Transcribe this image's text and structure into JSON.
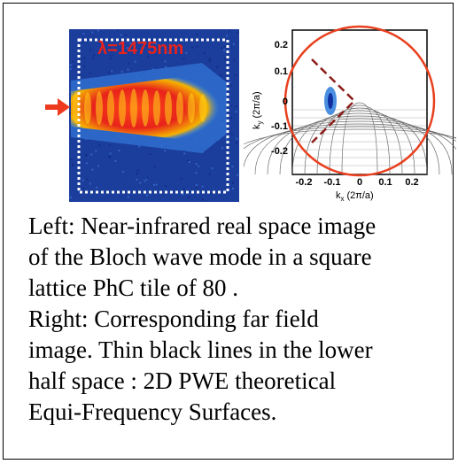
{
  "figure": {
    "left_panel": {
      "wavelength_label": "λ=1475nm",
      "colors": {
        "background": "#1b3d9c",
        "mode_hot": "#e8231b",
        "arrow": "#ee3a1f",
        "box": "#ffffff",
        "label": "#e8231b"
      },
      "icons": [
        "input-arrow-icon"
      ]
    },
    "right_panel": {
      "x_ticks": [
        "-0.2",
        "-0.1",
        "0",
        "0.1",
        "0.2"
      ],
      "y_ticks": [
        "0.2",
        "0.1",
        "0",
        "-0.1",
        "-0.2"
      ],
      "x_axis_label": {
        "main": "k",
        "sub": "x",
        "unit": "(2π/a)"
      },
      "y_axis_label": {
        "main": "k",
        "sub": "y",
        "unit": "(2π/a)"
      },
      "colors": {
        "circle": "#e8401e",
        "cone": "#8c1d18",
        "efs_lines": "#6b6b6b"
      }
    }
  },
  "caption": {
    "lines": [
      "Left: Near-infrared real space image",
      "of the Bloch wave mode in a square",
      "lattice PhC tile of 80 .",
      "Right: Corresponding far field",
      "image. Thin black lines in the lower",
      "half space : 2D PWE theoretical",
      "Equi-Frequency Surfaces."
    ]
  }
}
